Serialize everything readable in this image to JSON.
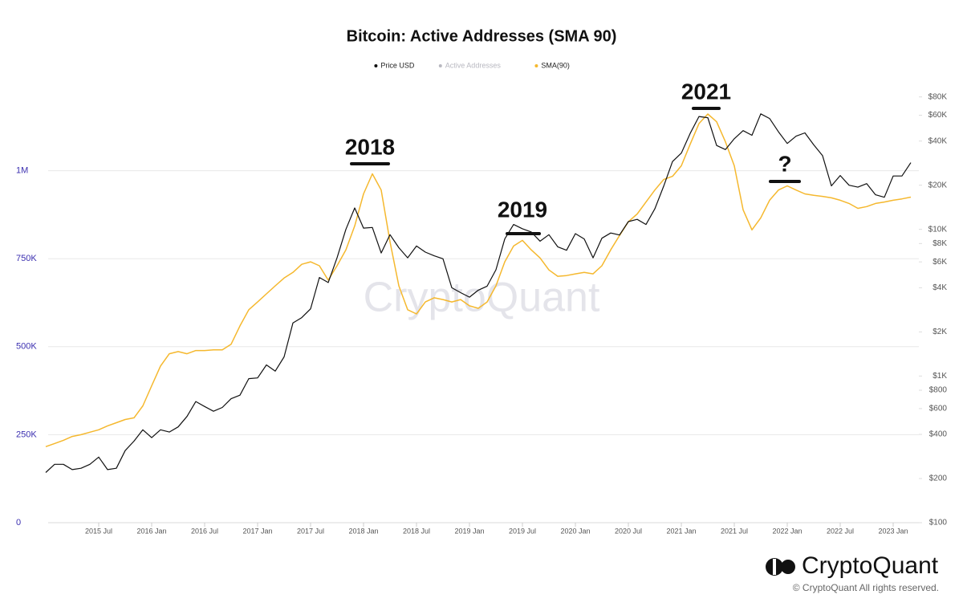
{
  "chart_data": {
    "type": "line",
    "title": "Bitcoin: Active Addresses (SMA 90)",
    "x": [
      "2015-01",
      "2015-02",
      "2015-03",
      "2015-04",
      "2015-05",
      "2015-06",
      "2015-07",
      "2015-08",
      "2015-09",
      "2015-10",
      "2015-11",
      "2015-12",
      "2016-01",
      "2016-02",
      "2016-03",
      "2016-04",
      "2016-05",
      "2016-06",
      "2016-07",
      "2016-08",
      "2016-09",
      "2016-10",
      "2016-11",
      "2016-12",
      "2017-01",
      "2017-02",
      "2017-03",
      "2017-04",
      "2017-05",
      "2017-06",
      "2017-07",
      "2017-08",
      "2017-09",
      "2017-10",
      "2017-11",
      "2017-12",
      "2018-01",
      "2018-02",
      "2018-03",
      "2018-04",
      "2018-05",
      "2018-06",
      "2018-07",
      "2018-08",
      "2018-09",
      "2018-10",
      "2018-11",
      "2018-12",
      "2019-01",
      "2019-02",
      "2019-03",
      "2019-04",
      "2019-05",
      "2019-06",
      "2019-07",
      "2019-08",
      "2019-09",
      "2019-10",
      "2019-11",
      "2019-12",
      "2020-01",
      "2020-02",
      "2020-03",
      "2020-04",
      "2020-05",
      "2020-06",
      "2020-07",
      "2020-08",
      "2020-09",
      "2020-10",
      "2020-11",
      "2020-12",
      "2021-01",
      "2021-02",
      "2021-03",
      "2021-04",
      "2021-05",
      "2021-06",
      "2021-07",
      "2021-08",
      "2021-09",
      "2021-10",
      "2021-11",
      "2021-12",
      "2022-01",
      "2022-02",
      "2022-03",
      "2022-04",
      "2022-05",
      "2022-06",
      "2022-07",
      "2022-08",
      "2022-09",
      "2022-10",
      "2022-11",
      "2022-12",
      "2023-01",
      "2023-02",
      "2023-03"
    ],
    "xlim": [
      "2015-01",
      "2023-03"
    ],
    "xticks": [
      {
        "value": "2015-07",
        "label": "2015 Jul"
      },
      {
        "value": "2016-01",
        "label": "2016 Jan"
      },
      {
        "value": "2016-07",
        "label": "2016 Jul"
      },
      {
        "value": "2017-01",
        "label": "2017 Jan"
      },
      {
        "value": "2017-07",
        "label": "2017 Jul"
      },
      {
        "value": "2018-01",
        "label": "2018 Jan"
      },
      {
        "value": "2018-07",
        "label": "2018 Jul"
      },
      {
        "value": "2019-01",
        "label": "2019 Jan"
      },
      {
        "value": "2019-07",
        "label": "2019 Jul"
      },
      {
        "value": "2020-01",
        "label": "2020 Jan"
      },
      {
        "value": "2020-07",
        "label": "2020 Jul"
      },
      {
        "value": "2021-01",
        "label": "2021 Jan"
      },
      {
        "value": "2021-07",
        "label": "2021 Jul"
      },
      {
        "value": "2022-01",
        "label": "2022 Jan"
      },
      {
        "value": "2022-07",
        "label": "2022 Jul"
      },
      {
        "value": "2023-01",
        "label": "2023 Jan"
      }
    ],
    "ylim": [
      0,
      1250000
    ],
    "yticks": [
      0,
      {
        "value": 250000,
        "label": "250K"
      },
      {
        "value": 500000,
        "label": "500K"
      },
      {
        "value": 750000,
        "label": "750K"
      },
      {
        "value": 1000000,
        "label": "1M"
      }
    ],
    "y2lim": [
      100,
      100000
    ],
    "y2log": true,
    "y2ticks": [
      {
        "value": 100,
        "label": "$100"
      },
      {
        "value": 200,
        "label": "$200"
      },
      {
        "value": 400,
        "label": "$400"
      },
      {
        "value": 600,
        "label": "$600"
      },
      {
        "value": 800,
        "label": "$800"
      },
      {
        "value": 1000,
        "label": "$1K"
      },
      {
        "value": 2000,
        "label": "$2K"
      },
      {
        "value": 4000,
        "label": "$4K"
      },
      {
        "value": 6000,
        "label": "$6K"
      },
      {
        "value": 8000,
        "label": "$8K"
      },
      {
        "value": 10000,
        "label": "$10K"
      },
      {
        "value": 20000,
        "label": "$20K"
      },
      {
        "value": 40000,
        "label": "$40K"
      },
      {
        "value": 60000,
        "label": "$60K"
      },
      {
        "value": 80000,
        "label": "$80K"
      }
    ],
    "grid": true,
    "series": [
      {
        "name": "Price USD",
        "color": "#111111",
        "axis": "y2",
        "values": [
          220,
          250,
          250,
          230,
          235,
          250,
          280,
          230,
          235,
          310,
          360,
          430,
          380,
          430,
          415,
          450,
          530,
          670,
          620,
          575,
          610,
          700,
          740,
          960,
          970,
          1190,
          1080,
          1350,
          2300,
          2500,
          2870,
          4700,
          4340,
          6400,
          10000,
          14000,
          10200,
          10300,
          6900,
          9200,
          7500,
          6400,
          7700,
          7000,
          6600,
          6300,
          4000,
          3700,
          3450,
          3850,
          4100,
          5300,
          8600,
          10800,
          10100,
          9600,
          8300,
          9200,
          7600,
          7200,
          9350,
          8600,
          6400,
          8700,
          9450,
          9150,
          11300,
          11700,
          10800,
          13800,
          19700,
          29000,
          33100,
          45100,
          58800,
          57700,
          37300,
          35000,
          41500,
          47100,
          43800,
          61300,
          57000,
          46300,
          38500,
          43200,
          45500,
          37700,
          31800,
          19800,
          23300,
          20000,
          19400,
          20500,
          17200,
          16550,
          23100,
          23150,
          28500
        ]
      },
      {
        "name": "SMA(90)",
        "color": "#f5b82e",
        "axis": "y",
        "values": [
          216000,
          225000,
          234000,
          245000,
          250000,
          257000,
          264000,
          275000,
          284000,
          293000,
          298000,
          332000,
          389000,
          445000,
          480000,
          486000,
          480000,
          489000,
          489000,
          491000,
          491000,
          507000,
          559000,
          605000,
          627000,
          650000,
          673000,
          695000,
          711000,
          734000,
          741000,
          730000,
          689000,
          730000,
          775000,
          843000,
          934000,
          991000,
          945000,
          798000,
          673000,
          605000,
          593000,
          627000,
          639000,
          634000,
          627000,
          634000,
          616000,
          609000,
          627000,
          673000,
          741000,
          786000,
          802000,
          775000,
          752000,
          718000,
          700000,
          702000,
          707000,
          711000,
          707000,
          730000,
          775000,
          816000,
          855000,
          877000,
          911000,
          945000,
          975000,
          984000,
          1014000,
          1075000,
          1134000,
          1161000,
          1139000,
          1082000,
          1014000,
          889000,
          832000,
          866000,
          916000,
          945000,
          957000,
          945000,
          934000,
          930000,
          927000,
          923000,
          916000,
          907000,
          893000,
          898000,
          907000,
          911000,
          916000,
          920000,
          925000
        ]
      }
    ],
    "hidden_series": [
      {
        "name": "Active Addresses",
        "color": "#b8b8c0"
      }
    ],
    "annotations": [
      "2018",
      "2019",
      "2021",
      "?"
    ],
    "watermark": "CryptoQuant",
    "brand": "CryptoQuant",
    "copyright": "© CryptoQuant All rights reserved."
  }
}
